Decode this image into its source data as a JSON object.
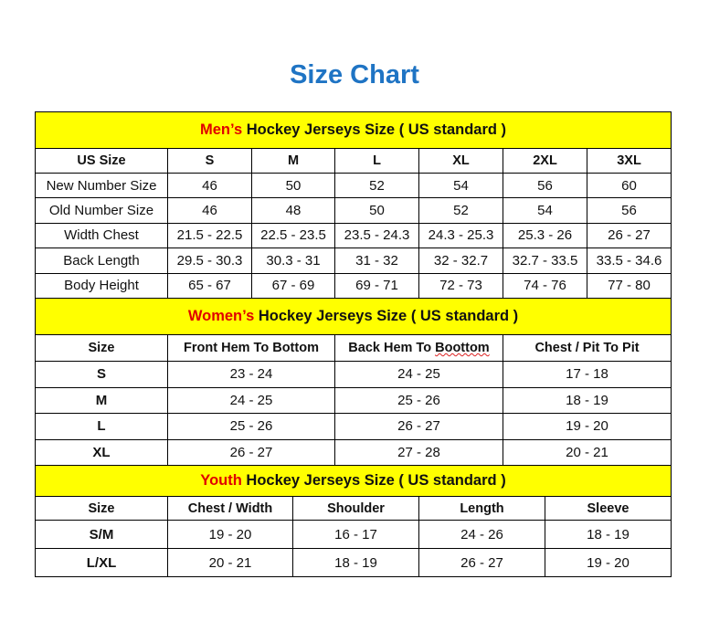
{
  "title": "Size Chart",
  "colors": {
    "title": "#1f74c4",
    "header_bg": "#ffff00",
    "accent_red": "#e00000"
  },
  "men": {
    "header_prefix": "Men’s",
    "header_rest": " Hockey Jerseys Size ( US standard )",
    "columns": [
      "US Size",
      "S",
      "M",
      "L",
      "XL",
      "2XL",
      "3XL"
    ],
    "rows": [
      [
        "New Number Size",
        "46",
        "50",
        "52",
        "54",
        "56",
        "60"
      ],
      [
        "Old Number Size",
        "46",
        "48",
        "50",
        "52",
        "54",
        "56"
      ],
      [
        "Width Chest",
        "21.5 - 22.5",
        "22.5 - 23.5",
        "23.5 - 24.3",
        "24.3 - 25.3",
        "25.3 - 26",
        "26 - 27"
      ],
      [
        "Back Length",
        "29.5 - 30.3",
        "30.3 - 31",
        "31 - 32",
        "32 - 32.7",
        "32.7 - 33.5",
        "33.5 - 34.6"
      ],
      [
        "Body Height",
        "65 - 67",
        "67 - 69",
        "69 - 71",
        "72 - 73",
        "74 - 76",
        "77 - 80"
      ]
    ]
  },
  "women": {
    "header_prefix": "Women’s",
    "header_rest": " Hockey Jerseys Size ( US standard )",
    "columns": [
      "Size",
      "Front Hem To Bottom",
      "Back Hem To Boottom",
      "Chest / Pit To Pit"
    ],
    "rows": [
      [
        "S",
        "23 - 24",
        "24 - 25",
        "17 - 18"
      ],
      [
        "M",
        "24 - 25",
        "25 - 26",
        "18 - 19"
      ],
      [
        "L",
        "25 - 26",
        "26 - 27",
        "19 - 20"
      ],
      [
        "XL",
        "26 - 27",
        "27 - 28",
        "20 - 21"
      ]
    ]
  },
  "youth": {
    "header_prefix": "Youth",
    "header_rest": " Hockey Jerseys Size ( US standard )",
    "columns": [
      "Size",
      "Chest / Width",
      "Shoulder",
      "Length",
      "Sleeve"
    ],
    "rows": [
      [
        "S/M",
        "19 - 20",
        "16 - 17",
        "24 - 26",
        "18 - 19"
      ],
      [
        "L/XL",
        "20 - 21",
        "18 - 19",
        "26 - 27",
        "19 - 20"
      ]
    ]
  }
}
